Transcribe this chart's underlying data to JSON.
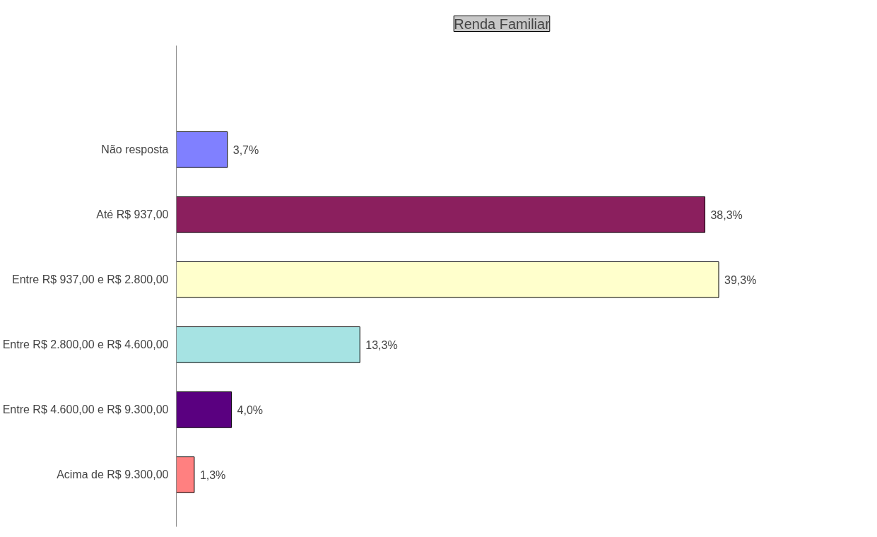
{
  "chart_data": {
    "type": "bar",
    "orientation": "horizontal",
    "title": "Renda Familiar",
    "categories": [
      "Não resposta",
      "Até R$ 937,00",
      "Entre R$ 937,00 e R$ 2.800,00",
      "Entre R$ 2.800,00 e R$ 4.600,00",
      "Entre R$ 4.600,00 e R$ 9.300,00",
      "Acima de R$ 9.300,00"
    ],
    "values": [
      3.7,
      38.3,
      39.3,
      13.3,
      4.0,
      1.3
    ],
    "colors": [
      "#8080ff",
      "#8b1f5e",
      "#ffffcc",
      "#a6e3e3",
      "#5a0080",
      "#ff8080"
    ],
    "value_labels": [
      "3,7%",
      "38,3%",
      "39,3%",
      "13,3%",
      "4,0%",
      "1,3%"
    ],
    "grid": false
  }
}
